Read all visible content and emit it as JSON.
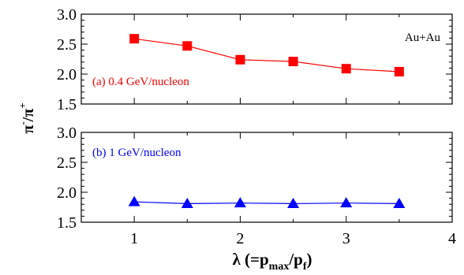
{
  "chart_data": [
    {
      "type": "line",
      "panel": "top",
      "annotation": "(a) 0.4 GeV/nucleon",
      "system_label": "Au+Au",
      "x": [
        1.0,
        1.5,
        2.0,
        2.5,
        3.0,
        3.5
      ],
      "series": [
        {
          "marker": "square",
          "color": "#ff0000",
          "values": [
            2.59,
            2.47,
            2.24,
            2.21,
            2.09,
            2.04
          ]
        }
      ],
      "xlim": [
        0.5,
        4.0
      ],
      "ylim": [
        1.5,
        3.0
      ],
      "y_ticks": [
        "1.5",
        "2.0",
        "2.5",
        "3.0"
      ],
      "grid": false
    },
    {
      "type": "line",
      "panel": "bottom",
      "annotation": "(b) 1 GeV/nucleon",
      "x": [
        1.0,
        1.5,
        2.0,
        2.5,
        3.0,
        3.5
      ],
      "series": [
        {
          "marker": "triangle",
          "color": "#0000ff",
          "values": [
            1.84,
            1.81,
            1.82,
            1.81,
            1.82,
            1.81
          ]
        }
      ],
      "xlim": [
        0.5,
        4.0
      ],
      "ylim": [
        1.5,
        3.0
      ],
      "x_ticks": [
        "1",
        "2",
        "3",
        "4"
      ],
      "y_ticks": [
        "1.5",
        "2.0",
        "2.5",
        "3.0"
      ],
      "grid": false
    }
  ],
  "axes": {
    "xlabel_main": "λ (=p",
    "xlabel_sub1": "max",
    "xlabel_mid": "/p",
    "xlabel_sub2": "f",
    "xlabel_end": ")",
    "ylabel_a": "π",
    "ylabel_a_sup": "-",
    "ylabel_mid": "/π",
    "ylabel_b_sup": "+"
  }
}
